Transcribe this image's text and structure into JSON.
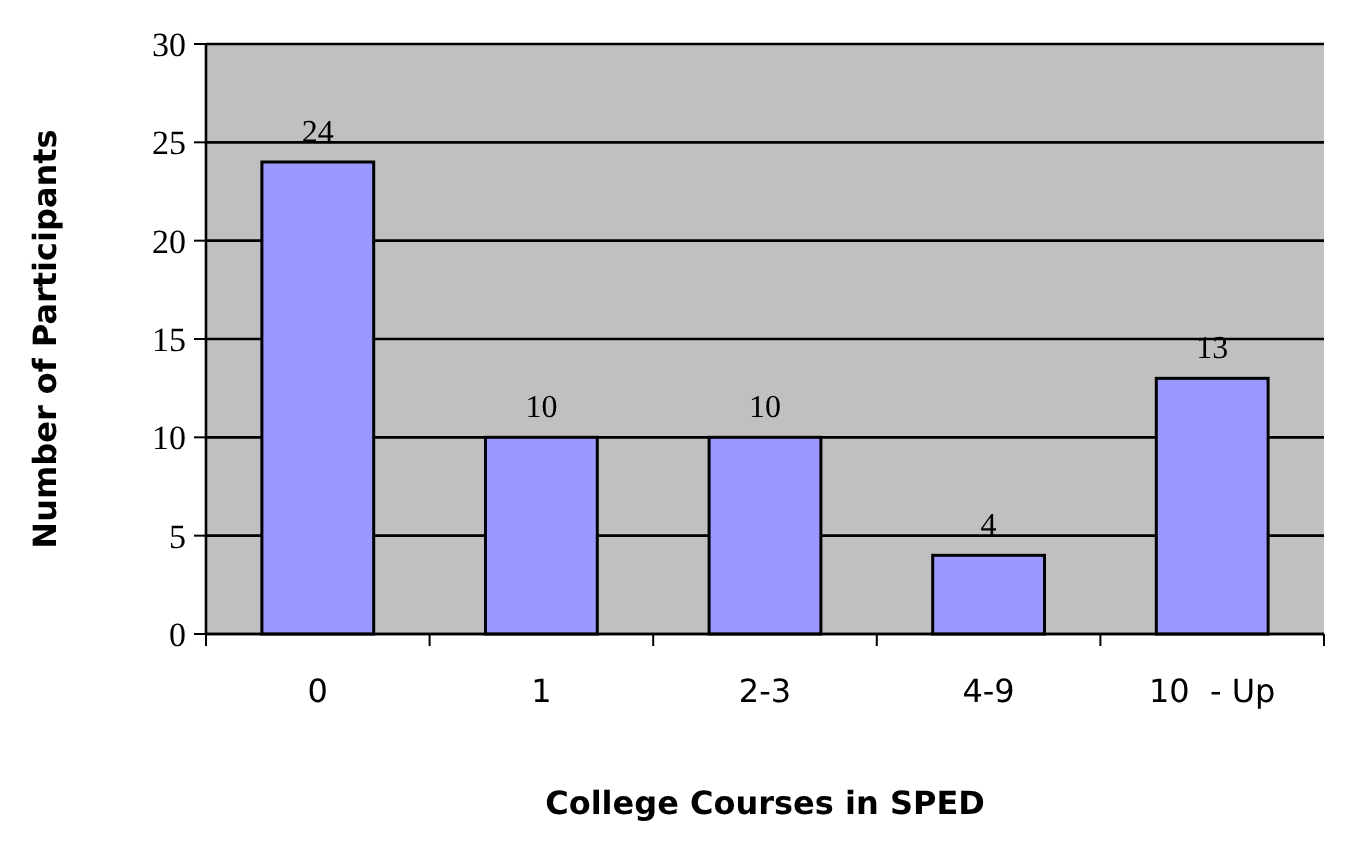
{
  "chart_data": {
    "type": "bar",
    "xlabel": "College Courses in SPED",
    "ylabel": "Number of Participants",
    "categories": [
      "0",
      "1",
      "2-3",
      "4-9",
      "10  - Up"
    ],
    "values": [
      24,
      10,
      10,
      4,
      13
    ],
    "color": "#9999ff",
    "ylim": [
      0,
      30
    ],
    "yticks": [
      0,
      5,
      10,
      15,
      20,
      25,
      30
    ],
    "grid": "y",
    "data_labels": true
  }
}
